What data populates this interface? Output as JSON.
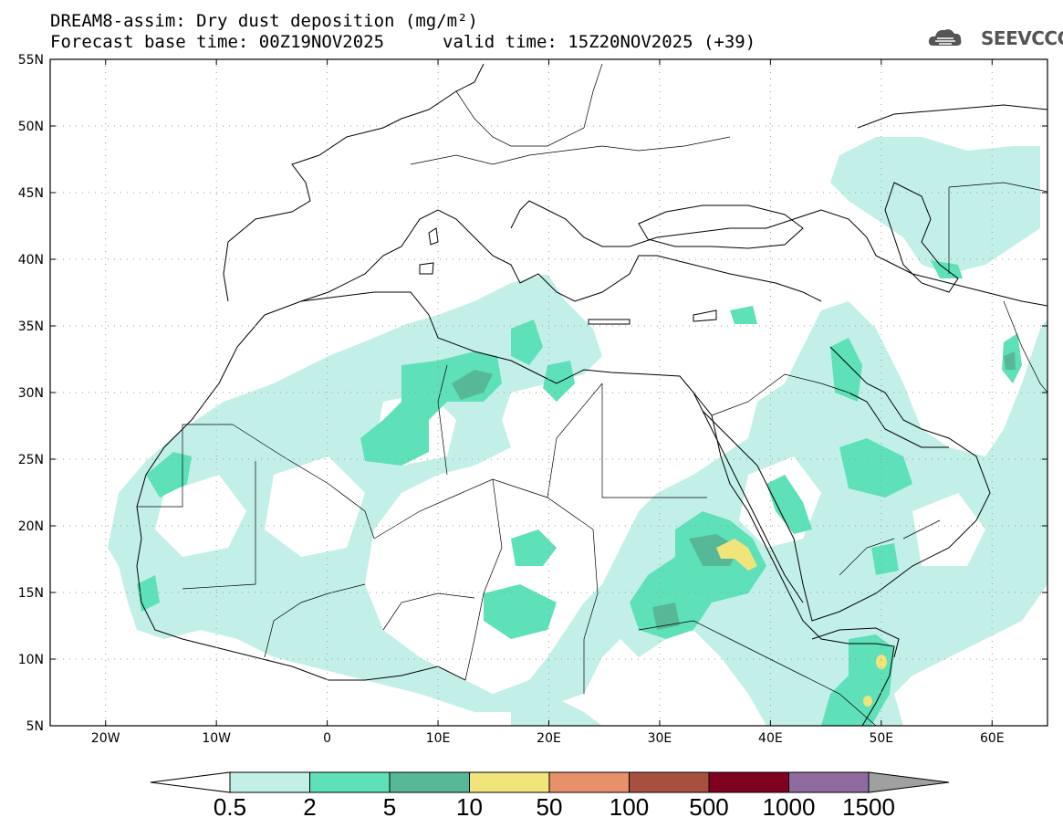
{
  "header": {
    "title": "DREAM8-assim: Dry dust deposition (mg/m²)",
    "base_time": "Forecast base time: 00Z19NOV2025",
    "valid_time": "valid time: 15Z20NOV2025 (+39)",
    "logo_text": "SEEVCCC"
  },
  "axes": {
    "lat_labels": [
      "55N",
      "50N",
      "45N",
      "40N",
      "35N",
      "30N",
      "25N",
      "20N",
      "15N",
      "10N",
      "5N"
    ],
    "lon_labels": [
      "20W",
      "10W",
      "0",
      "10E",
      "20E",
      "30E",
      "40E",
      "50E",
      "60E"
    ]
  },
  "colorbar": {
    "levels": [
      "0.5",
      "2",
      "5",
      "10",
      "50",
      "100",
      "500",
      "1000",
      "1500"
    ],
    "colors": [
      "#c2f0e8",
      "#5ee0b8",
      "#56b896",
      "#f0e47a",
      "#e8906a",
      "#a85040",
      "#800020",
      "#8e6a9e",
      "#a0a0a0"
    ],
    "under_color": "#ffffff",
    "over_color": "#a0a0a0"
  },
  "map": {
    "domain": {
      "lon_min": -25,
      "lon_max": 65,
      "lat_min": 5,
      "lat_max": 55
    },
    "dust_colors": {
      "low": "#c2f0e8",
      "mid": "#5ee0b8",
      "high": "#56b896",
      "peak": "#f0e47a"
    }
  }
}
